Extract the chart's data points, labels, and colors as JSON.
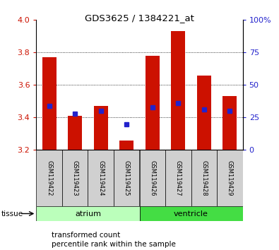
{
  "title": "GDS3625 / 1384221_at",
  "samples": [
    "GSM119422",
    "GSM119423",
    "GSM119424",
    "GSM119425",
    "GSM119426",
    "GSM119427",
    "GSM119428",
    "GSM119429"
  ],
  "tissue_groups": [
    {
      "label": "atrium",
      "samples": [
        0,
        1,
        2,
        3
      ],
      "color": "#bbffbb"
    },
    {
      "label": "ventricle",
      "samples": [
        4,
        5,
        6,
        7
      ],
      "color": "#44dd44"
    }
  ],
  "transformed_counts": [
    3.77,
    3.41,
    3.47,
    3.26,
    3.78,
    3.93,
    3.66,
    3.53
  ],
  "percentile_ranks": [
    34,
    28,
    30,
    20,
    33,
    36,
    31,
    30
  ],
  "y_min": 3.2,
  "y_max": 4.0,
  "y_ticks": [
    3.2,
    3.4,
    3.6,
    3.8,
    4.0
  ],
  "right_y_ticks": [
    0,
    25,
    50,
    75,
    100
  ],
  "bar_color": "#cc1100",
  "blue_color": "#2222cc",
  "bar_width": 0.55,
  "label_color_left": "#cc1100",
  "label_color_right": "#2222cc",
  "tissue_label": "tissue",
  "legend_items": [
    "transformed count",
    "percentile rank within the sample"
  ]
}
